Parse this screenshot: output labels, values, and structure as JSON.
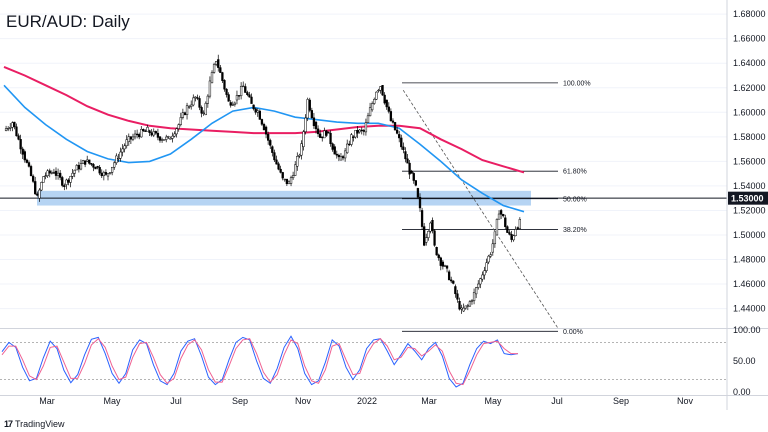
{
  "title": "EUR/AUD: Daily",
  "brand": {
    "logo": "17",
    "name": "TradingView"
  },
  "colors": {
    "sma_long": "#e91e63",
    "sma_short": "#2196f3",
    "zone": "#9ec5ef",
    "candle": "#000000",
    "stoch_k": "#2962ff",
    "stoch_d": "#f06292"
  },
  "chart_data": [
    {
      "type": "line",
      "title": "EUR/AUD: Daily",
      "x_labels": [
        "Mar",
        "May",
        "Jul",
        "Sep",
        "Nov",
        "2022",
        "Mar",
        "May",
        "Jul",
        "Sep",
        "Nov"
      ],
      "y_ticks": [
        "1.68000",
        "1.66000",
        "1.64000",
        "1.62000",
        "1.60000",
        "1.58000",
        "1.56000",
        "1.54000",
        "1.52000",
        "1.50000",
        "1.48000",
        "1.46000",
        "1.44000"
      ],
      "ylim": [
        1.425,
        1.685
      ],
      "grid": true,
      "price_tag": "1.53000",
      "horizontal_line": 1.53,
      "support_zone": {
        "low": 1.524,
        "high": 1.536
      },
      "fib_levels": [
        {
          "label": "100.00%",
          "value": 1.624
        },
        {
          "label": "61.80%",
          "value": 1.552
        },
        {
          "label": "50.00%",
          "value": 1.5295
        },
        {
          "label": "38.20%",
          "value": 1.5045
        },
        {
          "label": "0.00%",
          "value": 1.4215
        }
      ],
      "trendline": {
        "from": [
          355,
          1.618
        ],
        "to": [
          475,
          1.424
        ]
      },
      "price_path": [
        [
          0,
          1.585
        ],
        [
          8,
          1.592
        ],
        [
          18,
          1.568
        ],
        [
          26,
          1.548
        ],
        [
          32,
          1.53
        ],
        [
          38,
          1.548
        ],
        [
          48,
          1.552
        ],
        [
          58,
          1.541
        ],
        [
          68,
          1.553
        ],
        [
          78,
          1.56
        ],
        [
          88,
          1.556
        ],
        [
          98,
          1.548
        ],
        [
          108,
          1.562
        ],
        [
          118,
          1.576
        ],
        [
          128,
          1.582
        ],
        [
          138,
          1.585
        ],
        [
          148,
          1.58
        ],
        [
          158,
          1.578
        ],
        [
          168,
          1.59
        ],
        [
          176,
          1.604
        ],
        [
          184,
          1.612
        ],
        [
          192,
          1.598
        ],
        [
          198,
          1.624
        ],
        [
          204,
          1.643
        ],
        [
          210,
          1.626
        ],
        [
          216,
          1.608
        ],
        [
          222,
          1.61
        ],
        [
          230,
          1.621
        ],
        [
          238,
          1.606
        ],
        [
          244,
          1.601
        ],
        [
          250,
          1.588
        ],
        [
          256,
          1.572
        ],
        [
          262,
          1.558
        ],
        [
          268,
          1.545
        ],
        [
          274,
          1.542
        ],
        [
          280,
          1.556
        ],
        [
          286,
          1.572
        ],
        [
          292,
          1.61
        ],
        [
          298,
          1.592
        ],
        [
          304,
          1.58
        ],
        [
          310,
          1.584
        ],
        [
          316,
          1.572
        ],
        [
          322,
          1.561
        ],
        [
          328,
          1.567
        ],
        [
          334,
          1.58
        ],
        [
          340,
          1.584
        ],
        [
          346,
          1.584
        ],
        [
          352,
          1.602
        ],
        [
          358,
          1.618
        ],
        [
          362,
          1.622
        ],
        [
          366,
          1.61
        ],
        [
          372,
          1.593
        ],
        [
          378,
          1.582
        ],
        [
          384,
          1.568
        ],
        [
          390,
          1.552
        ],
        [
          396,
          1.538
        ],
        [
          400,
          1.52
        ],
        [
          404,
          1.494
        ],
        [
          410,
          1.512
        ],
        [
          414,
          1.49
        ],
        [
          420,
          1.478
        ],
        [
          426,
          1.47
        ],
        [
          432,
          1.458
        ],
        [
          436,
          1.446
        ],
        [
          440,
          1.438
        ],
        [
          446,
          1.442
        ],
        [
          452,
          1.452
        ],
        [
          458,
          1.464
        ],
        [
          464,
          1.478
        ],
        [
          468,
          1.486
        ],
        [
          472,
          1.5
        ],
        [
          476,
          1.52
        ],
        [
          480,
          1.514
        ],
        [
          484,
          1.502
        ],
        [
          488,
          1.496
        ],
        [
          492,
          1.506
        ],
        [
          496,
          1.51
        ]
      ],
      "sma_short_path": [
        [
          0,
          1.622
        ],
        [
          20,
          1.604
        ],
        [
          40,
          1.59
        ],
        [
          60,
          1.578
        ],
        [
          80,
          1.568
        ],
        [
          100,
          1.562
        ],
        [
          120,
          1.559
        ],
        [
          140,
          1.56
        ],
        [
          160,
          1.566
        ],
        [
          180,
          1.578
        ],
        [
          200,
          1.591
        ],
        [
          220,
          1.601
        ],
        [
          240,
          1.604
        ],
        [
          260,
          1.601
        ],
        [
          280,
          1.596
        ],
        [
          300,
          1.594
        ],
        [
          320,
          1.592
        ],
        [
          340,
          1.591
        ],
        [
          360,
          1.591
        ],
        [
          380,
          1.587
        ],
        [
          400,
          1.574
        ],
        [
          420,
          1.56
        ],
        [
          440,
          1.545
        ],
        [
          460,
          1.534
        ],
        [
          480,
          1.524
        ],
        [
          500,
          1.519
        ]
      ],
      "sma_long_path": [
        [
          0,
          1.637
        ],
        [
          20,
          1.63
        ],
        [
          40,
          1.622
        ],
        [
          60,
          1.614
        ],
        [
          80,
          1.605
        ],
        [
          100,
          1.598
        ],
        [
          120,
          1.593
        ],
        [
          140,
          1.589
        ],
        [
          160,
          1.587
        ],
        [
          180,
          1.586
        ],
        [
          200,
          1.585
        ],
        [
          220,
          1.584
        ],
        [
          240,
          1.583
        ],
        [
          260,
          1.583
        ],
        [
          280,
          1.583
        ],
        [
          300,
          1.584
        ],
        [
          320,
          1.586
        ],
        [
          340,
          1.588
        ],
        [
          360,
          1.589
        ],
        [
          380,
          1.589
        ],
        [
          400,
          1.587
        ],
        [
          420,
          1.578
        ],
        [
          440,
          1.57
        ],
        [
          460,
          1.561
        ],
        [
          480,
          1.556
        ],
        [
          500,
          1.551
        ]
      ]
    },
    {
      "type": "line",
      "title": "",
      "y_ticks": [
        "100.00",
        "50.00",
        "0.00"
      ],
      "ylim": [
        0,
        100
      ],
      "bands": [
        80,
        20
      ],
      "series": [
        {
          "values": [
            65,
            80,
            72,
            40,
            18,
            22,
            55,
            82,
            70,
            35,
            15,
            28,
            60,
            85,
            88,
            62,
            30,
            14,
            30,
            68,
            84,
            78,
            44,
            18,
            12,
            30,
            66,
            82,
            86,
            58,
            24,
            12,
            20,
            52,
            80,
            88,
            84,
            50,
            22,
            14,
            38,
            72,
            90,
            70,
            30,
            12,
            18,
            48,
            84,
            74,
            40,
            20,
            36,
            70,
            84,
            86,
            66,
            44,
            60,
            78,
            66,
            52,
            70,
            80,
            58,
            22,
            8,
            14,
            44,
            70,
            82,
            78,
            84,
            62,
            60,
            62
          ]
        },
        {
          "values": [
            60,
            74,
            74,
            52,
            26,
            20,
            42,
            72,
            74,
            48,
            22,
            22,
            46,
            76,
            86,
            72,
            42,
            20,
            24,
            56,
            78,
            80,
            56,
            28,
            14,
            22,
            54,
            76,
            84,
            68,
            36,
            16,
            16,
            42,
            70,
            84,
            86,
            62,
            32,
            16,
            28,
            60,
            84,
            78,
            42,
            18,
            14,
            36,
            74,
            78,
            52,
            28,
            30,
            60,
            78,
            86,
            74,
            52,
            56,
            72,
            70,
            58,
            66,
            76,
            66,
            34,
            14,
            12,
            34,
            60,
            78,
            80,
            82,
            70,
            62,
            62
          ]
        }
      ]
    }
  ]
}
